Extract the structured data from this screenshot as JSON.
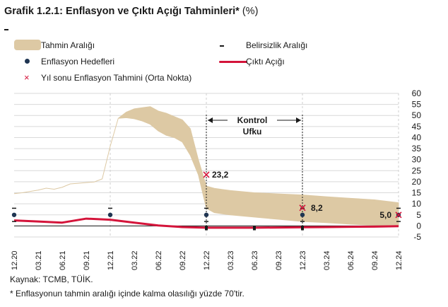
{
  "header": {
    "title": "Grafik 1.2.1: Enflasyon ve Çıktı Açığı Tahminleri*",
    "unit": "(%)"
  },
  "legend": {
    "band": "Tahmin Aralığı",
    "uncertainty": "Belirsizlik Aralığı",
    "target": "Enflasyon Hedefleri",
    "output_gap": "Çıktı Açığı",
    "forecast": "Yıl sonu Enflasyon Tahmini (Orta Nokta)"
  },
  "annotation": {
    "control_line1": "Kontrol",
    "control_line2": "Ufku"
  },
  "footer": {
    "source": "Kaynak: TCMB, TÜİK.",
    "note": "* Enflasyonun tahmin aralığı içinde kalma olasılığı yüzde 70'tir."
  },
  "colors": {
    "band": "#ddc9a4",
    "output_gap": "#d4143a",
    "target_dot": "#1f3552",
    "forecast_cross": "#d4143a",
    "grid": "#d9d9d9"
  },
  "chart_data": {
    "type": "area",
    "ylim": [
      -5,
      60
    ],
    "yticks": [
      -5,
      0,
      5,
      10,
      15,
      20,
      25,
      30,
      35,
      40,
      45,
      50,
      55,
      60
    ],
    "grid": true,
    "x_tick_labels": [
      "12.20",
      "03.21",
      "06.21",
      "09.21",
      "12.21",
      "03.22",
      "06.22",
      "09.22",
      "12.22",
      "03.23",
      "06.23",
      "09.23",
      "12.23",
      "03.24",
      "06.24",
      "09.24",
      "12.24"
    ],
    "band_lower": [
      [
        "12.20",
        14.6
      ],
      [
        "01.21",
        15.0
      ],
      [
        "02.21",
        15.6
      ],
      [
        "03.21",
        16.2
      ],
      [
        "04.21",
        17.1
      ],
      [
        "05.21",
        16.6
      ],
      [
        "06.21",
        17.5
      ],
      [
        "07.21",
        19.0
      ],
      [
        "08.21",
        19.3
      ],
      [
        "09.21",
        19.6
      ],
      [
        "10.21",
        19.9
      ],
      [
        "11.21",
        21.3
      ],
      [
        "12.21",
        36.1
      ],
      [
        "01.22",
        48.7
      ],
      [
        "02.22",
        49.0
      ],
      [
        "03.22",
        48.5
      ],
      [
        "04.22",
        47.5
      ],
      [
        "05.22",
        46.0
      ],
      [
        "06.22",
        43.0
      ],
      [
        "07.22",
        41.0
      ],
      [
        "08.22",
        40.0
      ],
      [
        "09.22",
        38.0
      ],
      [
        "10.22",
        32.0
      ],
      [
        "11.22",
        23.2
      ],
      [
        "12.22",
        8.0
      ],
      [
        "01.23",
        6.0
      ],
      [
        "02.23",
        5.5
      ],
      [
        "03.23",
        5.0
      ],
      [
        "06.23",
        4.0
      ],
      [
        "09.23",
        3.0
      ],
      [
        "12.23",
        2.0
      ],
      [
        "03.24",
        1.5
      ],
      [
        "06.24",
        0.8
      ],
      [
        "09.24",
        0.3
      ],
      [
        "12.24",
        0.0
      ]
    ],
    "band_upper": [
      [
        "12.20",
        14.6
      ],
      [
        "01.21",
        15.0
      ],
      [
        "02.21",
        15.6
      ],
      [
        "03.21",
        16.2
      ],
      [
        "04.21",
        17.1
      ],
      [
        "05.21",
        16.6
      ],
      [
        "06.21",
        17.5
      ],
      [
        "07.21",
        19.0
      ],
      [
        "08.21",
        19.3
      ],
      [
        "09.21",
        19.6
      ],
      [
        "10.21",
        19.9
      ],
      [
        "11.21",
        21.3
      ],
      [
        "12.21",
        36.1
      ],
      [
        "01.22",
        48.7
      ],
      [
        "02.22",
        51.5
      ],
      [
        "03.22",
        53.0
      ],
      [
        "04.22",
        53.5
      ],
      [
        "05.22",
        54.0
      ],
      [
        "06.22",
        52.0
      ],
      [
        "07.22",
        51.0
      ],
      [
        "08.22",
        49.5
      ],
      [
        "09.22",
        48.0
      ],
      [
        "10.22",
        44.0
      ],
      [
        "11.22",
        30.0
      ],
      [
        "12.22",
        18.0
      ],
      [
        "01.23",
        17.0
      ],
      [
        "02.23",
        16.5
      ],
      [
        "03.23",
        16.0
      ],
      [
        "06.23",
        15.0
      ],
      [
        "09.23",
        14.5
      ],
      [
        "12.23",
        14.0
      ],
      [
        "03.24",
        13.2
      ],
      [
        "06.24",
        12.5
      ],
      [
        "09.24",
        11.8
      ],
      [
        "12.24",
        10.5
      ]
    ],
    "output_gap": [
      [
        "12.20",
        2.5
      ],
      [
        "03.21",
        2.0
      ],
      [
        "06.21",
        1.5
      ],
      [
        "09.21",
        3.3
      ],
      [
        "12.21",
        2.8
      ],
      [
        "03.22",
        1.5
      ],
      [
        "06.22",
        0.2
      ],
      [
        "09.22",
        -0.5
      ],
      [
        "12.22",
        -0.8
      ],
      [
        "03.23",
        -0.8
      ],
      [
        "06.23",
        -0.8
      ],
      [
        "09.23",
        -0.7
      ],
      [
        "12.23",
        -0.6
      ],
      [
        "03.24",
        -0.5
      ],
      [
        "06.24",
        -0.4
      ],
      [
        "09.24",
        -0.3
      ],
      [
        "12.24",
        -0.1
      ]
    ],
    "inflation_targets": [
      {
        "x": "12.20",
        "y": 5.0
      },
      {
        "x": "12.21",
        "y": 5.0
      },
      {
        "x": "12.22",
        "y": 5.0
      },
      {
        "x": "12.23",
        "y": 5.0
      },
      {
        "x": "12.24",
        "y": 5.0
      }
    ],
    "uncertainty_markers": [
      {
        "x": "12.20",
        "y": 2.0
      },
      {
        "x": "12.20",
        "y": 8.0
      },
      {
        "x": "12.21",
        "y": 8.0
      },
      {
        "x": "12.22",
        "y": 2.0
      },
      {
        "x": "12.22",
        "y": 8.0
      },
      {
        "x": "12.23",
        "y": 2.0
      },
      {
        "x": "12.23",
        "y": 8.0
      },
      {
        "x": "12.24",
        "y": 2.0
      },
      {
        "x": "12.24",
        "y": 8.0
      }
    ],
    "bottom_markers": [
      {
        "x": "12.22",
        "y": -1.0
      },
      {
        "x": "06.23",
        "y": -1.0
      },
      {
        "x": "12.23",
        "y": -1.0
      }
    ],
    "year_end_forecasts": [
      {
        "x": "12.22",
        "y": 23.2,
        "label": "23,2"
      },
      {
        "x": "12.23",
        "y": 8.2,
        "label": "8,2"
      },
      {
        "x": "12.24",
        "y": 5.0,
        "label": "5,0"
      }
    ],
    "control_horizon": {
      "from": "12.22",
      "to": "12.23"
    }
  }
}
